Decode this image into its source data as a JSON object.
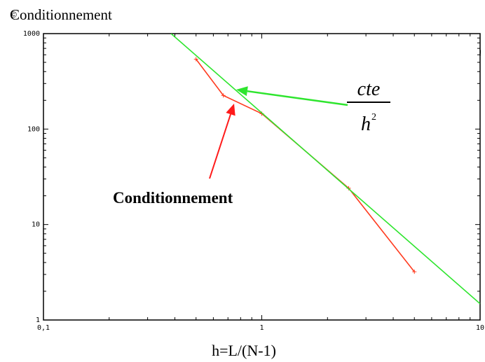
{
  "chart_data": {
    "type": "line",
    "title": "Conditionnement",
    "title_mark": "©",
    "right_mark": "!",
    "xlabel": "h=L/(N-1)",
    "ylabel": "",
    "x_scale": "log",
    "y_scale": "log",
    "xlim": [
      0.1,
      10
    ],
    "ylim": [
      1,
      1000
    ],
    "x_tick_labels": [
      "0,1",
      "1",
      "10"
    ],
    "y_tick_labels": [
      "1",
      "10",
      "100",
      "1000"
    ],
    "grid": false,
    "series": [
      {
        "color": "#ff3b1f",
        "marker": "+",
        "x": [
          0.5,
          0.667,
          1.0,
          2.5,
          5.0
        ],
        "y": [
          540,
          225,
          145,
          24,
          3.2
        ]
      },
      {
        "color": "#2ee52e",
        "x": [
          0.384,
          10
        ],
        "y": [
          1000,
          1.48
        ]
      }
    ],
    "annotations": {
      "conditionnement_label": "Conditionnement",
      "fraction_numerator": "cte",
      "fraction_denominator": "h",
      "fraction_exponent": "2",
      "green_arrow_color": "#2ee52e",
      "red_arrow_color": "#ff1a1a"
    }
  }
}
